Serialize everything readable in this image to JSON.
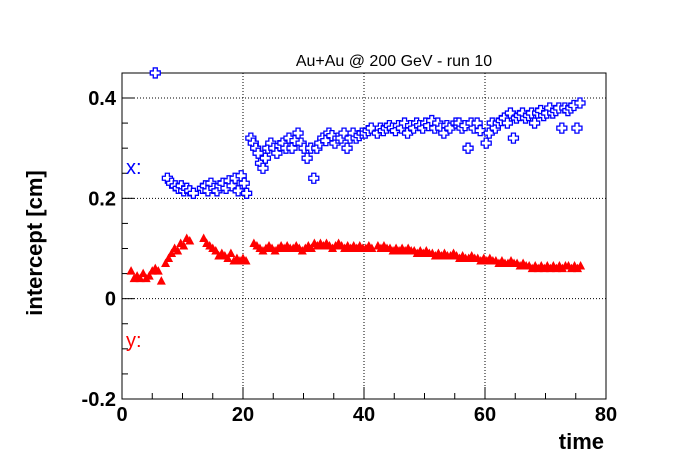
{
  "chart_data": {
    "type": "scatter",
    "title": "Au+Au @ 200 GeV - run 10",
    "xlabel": "time",
    "ylabel": "intercept [cm]",
    "xlim": [
      0,
      80
    ],
    "ylim": [
      -0.2,
      0.45
    ],
    "x_ticks": [
      "0",
      "20",
      "40",
      "60",
      "80"
    ],
    "y_ticks": [
      "-0.2",
      "0",
      "0.2",
      "0.4"
    ],
    "grid": true,
    "series": [
      {
        "name": "x:",
        "color": "#0000ff",
        "marker": "open-cross",
        "points": [
          [
            5.5,
            0.45
          ],
          [
            7.5,
            0.24
          ],
          [
            8.2,
            0.23
          ],
          [
            8.8,
            0.225
          ],
          [
            9.3,
            0.22
          ],
          [
            9.8,
            0.225
          ],
          [
            10.2,
            0.215
          ],
          [
            10.7,
            0.22
          ],
          [
            11.2,
            0.215
          ],
          [
            11.8,
            0.21
          ],
          [
            13.3,
            0.22
          ],
          [
            13.8,
            0.225
          ],
          [
            14.2,
            0.215
          ],
          [
            14.7,
            0.23
          ],
          [
            15.2,
            0.22
          ],
          [
            15.7,
            0.215
          ],
          [
            16.2,
            0.225
          ],
          [
            16.7,
            0.23
          ],
          [
            17.2,
            0.22
          ],
          [
            17.7,
            0.235
          ],
          [
            18.2,
            0.225
          ],
          [
            18.7,
            0.24
          ],
          [
            19.2,
            0.215
          ],
          [
            19.7,
            0.245
          ],
          [
            20.2,
            0.23
          ],
          [
            20.6,
            0.21
          ],
          [
            21.3,
            0.32
          ],
          [
            21.7,
            0.31
          ],
          [
            22.1,
            0.3
          ],
          [
            22.5,
            0.29
          ],
          [
            22.9,
            0.27
          ],
          [
            23.3,
            0.26
          ],
          [
            23.7,
            0.28
          ],
          [
            24.1,
            0.3
          ],
          [
            24.6,
            0.31
          ],
          [
            25.1,
            0.3
          ],
          [
            25.6,
            0.29
          ],
          [
            26.1,
            0.305
          ],
          [
            26.6,
            0.31
          ],
          [
            27.1,
            0.3
          ],
          [
            27.6,
            0.32
          ],
          [
            28.1,
            0.3
          ],
          [
            28.6,
            0.315
          ],
          [
            29.1,
            0.33
          ],
          [
            29.6,
            0.31
          ],
          [
            30.1,
            0.3
          ],
          [
            30.6,
            0.28
          ],
          [
            31.2,
            0.3
          ],
          [
            31.7,
            0.24
          ],
          [
            32.2,
            0.3
          ],
          [
            32.7,
            0.31
          ],
          [
            33.2,
            0.32
          ],
          [
            33.7,
            0.315
          ],
          [
            34.2,
            0.33
          ],
          [
            34.7,
            0.325
          ],
          [
            35.2,
            0.31
          ],
          [
            35.7,
            0.32
          ],
          [
            36.2,
            0.32
          ],
          [
            36.7,
            0.33
          ],
          [
            37.2,
            0.3
          ],
          [
            37.7,
            0.32
          ],
          [
            38.2,
            0.33
          ],
          [
            38.7,
            0.32
          ],
          [
            39.2,
            0.325
          ],
          [
            39.7,
            0.33
          ],
          [
            40.2,
            0.33
          ],
          [
            40.7,
            0.335
          ],
          [
            41.2,
            0.34
          ],
          [
            42.2,
            0.33
          ],
          [
            42.7,
            0.34
          ],
          [
            43.2,
            0.335
          ],
          [
            43.7,
            0.34
          ],
          [
            44.2,
            0.345
          ],
          [
            44.7,
            0.34
          ],
          [
            45.2,
            0.335
          ],
          [
            45.7,
            0.345
          ],
          [
            46.2,
            0.34
          ],
          [
            46.7,
            0.35
          ],
          [
            47.2,
            0.33
          ],
          [
            47.7,
            0.345
          ],
          [
            48.2,
            0.34
          ],
          [
            48.7,
            0.35
          ],
          [
            49.2,
            0.345
          ],
          [
            49.7,
            0.34
          ],
          [
            50.2,
            0.35
          ],
          [
            50.7,
            0.345
          ],
          [
            51.2,
            0.355
          ],
          [
            51.7,
            0.34
          ],
          [
            52.2,
            0.35
          ],
          [
            52.7,
            0.34
          ],
          [
            53.2,
            0.33
          ],
          [
            53.7,
            0.345
          ],
          [
            54.2,
            0.34
          ],
          [
            55.2,
            0.35
          ],
          [
            55.7,
            0.35
          ],
          [
            56.2,
            0.34
          ],
          [
            56.7,
            0.345
          ],
          [
            57.2,
            0.3
          ],
          [
            57.7,
            0.35
          ],
          [
            58.2,
            0.34
          ],
          [
            58.7,
            0.35
          ],
          [
            59.2,
            0.335
          ],
          [
            60.2,
            0.31
          ],
          [
            60.7,
            0.33
          ],
          [
            61.2,
            0.35
          ],
          [
            61.7,
            0.34
          ],
          [
            62.2,
            0.35
          ],
          [
            62.7,
            0.355
          ],
          [
            63.2,
            0.36
          ],
          [
            63.7,
            0.35
          ],
          [
            64.2,
            0.37
          ],
          [
            64.7,
            0.32
          ],
          [
            65.2,
            0.36
          ],
          [
            65.7,
            0.365
          ],
          [
            66.2,
            0.37
          ],
          [
            66.7,
            0.36
          ],
          [
            67.2,
            0.365
          ],
          [
            67.7,
            0.37
          ],
          [
            68.2,
            0.35
          ],
          [
            68.7,
            0.37
          ],
          [
            69.2,
            0.375
          ],
          [
            69.7,
            0.365
          ],
          [
            70.2,
            0.37
          ],
          [
            70.7,
            0.38
          ],
          [
            71.2,
            0.37
          ],
          [
            71.7,
            0.375
          ],
          [
            72.2,
            0.38
          ],
          [
            72.7,
            0.34
          ],
          [
            73.2,
            0.38
          ],
          [
            73.7,
            0.375
          ],
          [
            74.2,
            0.38
          ],
          [
            74.7,
            0.385
          ],
          [
            75.2,
            0.34
          ],
          [
            75.7,
            0.39
          ]
        ]
      },
      {
        "name": "y:",
        "color": "#ff0000",
        "marker": "filled-triangle",
        "points": [
          [
            1.5,
            0.055
          ],
          [
            2.0,
            0.04
          ],
          [
            2.5,
            0.045
          ],
          [
            3.0,
            0.04
          ],
          [
            3.5,
            0.05
          ],
          [
            4.0,
            0.04
          ],
          [
            4.5,
            0.045
          ],
          [
            5.0,
            0.055
          ],
          [
            5.5,
            0.06
          ],
          [
            6.0,
            0.055
          ],
          [
            6.5,
            0.035
          ],
          [
            7.2,
            0.07
          ],
          [
            7.7,
            0.08
          ],
          [
            8.2,
            0.09
          ],
          [
            8.7,
            0.1
          ],
          [
            9.2,
            0.095
          ],
          [
            9.7,
            0.11
          ],
          [
            10.2,
            0.105
          ],
          [
            10.7,
            0.12
          ],
          [
            11.2,
            0.115
          ],
          [
            13.5,
            0.12
          ],
          [
            14.0,
            0.11
          ],
          [
            14.5,
            0.105
          ],
          [
            15.0,
            0.1
          ],
          [
            15.5,
            0.095
          ],
          [
            16.0,
            0.085
          ],
          [
            16.5,
            0.09
          ],
          [
            17.0,
            0.085
          ],
          [
            17.5,
            0.08
          ],
          [
            18.0,
            0.09
          ],
          [
            18.5,
            0.075
          ],
          [
            19.0,
            0.08
          ],
          [
            19.5,
            0.075
          ],
          [
            20.0,
            0.08
          ],
          [
            20.5,
            0.075
          ],
          [
            21.8,
            0.11
          ],
          [
            22.3,
            0.105
          ],
          [
            22.8,
            0.1
          ],
          [
            23.3,
            0.095
          ],
          [
            23.8,
            0.1
          ],
          [
            24.3,
            0.105
          ],
          [
            24.8,
            0.1
          ],
          [
            25.3,
            0.095
          ],
          [
            25.8,
            0.1
          ],
          [
            26.3,
            0.105
          ],
          [
            26.8,
            0.1
          ],
          [
            27.3,
            0.105
          ],
          [
            27.8,
            0.1
          ],
          [
            28.3,
            0.1
          ],
          [
            28.8,
            0.105
          ],
          [
            29.3,
            0.1
          ],
          [
            29.8,
            0.095
          ],
          [
            30.3,
            0.1
          ],
          [
            30.8,
            0.105
          ],
          [
            31.3,
            0.1
          ],
          [
            31.8,
            0.11
          ],
          [
            32.3,
            0.105
          ],
          [
            32.8,
            0.11
          ],
          [
            33.3,
            0.105
          ],
          [
            33.8,
            0.11
          ],
          [
            34.3,
            0.105
          ],
          [
            34.8,
            0.1
          ],
          [
            35.3,
            0.105
          ],
          [
            35.8,
            0.11
          ],
          [
            36.3,
            0.105
          ],
          [
            36.8,
            0.1
          ],
          [
            37.3,
            0.105
          ],
          [
            37.8,
            0.1
          ],
          [
            38.3,
            0.105
          ],
          [
            38.8,
            0.1
          ],
          [
            39.3,
            0.105
          ],
          [
            39.8,
            0.1
          ],
          [
            40.3,
            0.1
          ],
          [
            40.8,
            0.105
          ],
          [
            41.3,
            0.1
          ],
          [
            42.3,
            0.105
          ],
          [
            42.8,
            0.1
          ],
          [
            43.3,
            0.105
          ],
          [
            43.8,
            0.1
          ],
          [
            44.3,
            0.1
          ],
          [
            44.8,
            0.095
          ],
          [
            45.3,
            0.1
          ],
          [
            45.8,
            0.095
          ],
          [
            46.3,
            0.1
          ],
          [
            46.8,
            0.095
          ],
          [
            47.3,
            0.1
          ],
          [
            47.8,
            0.095
          ],
          [
            48.3,
            0.095
          ],
          [
            48.8,
            0.09
          ],
          [
            49.3,
            0.095
          ],
          [
            49.8,
            0.09
          ],
          [
            50.3,
            0.095
          ],
          [
            50.8,
            0.09
          ],
          [
            51.3,
            0.09
          ],
          [
            51.8,
            0.085
          ],
          [
            52.3,
            0.09
          ],
          [
            52.8,
            0.085
          ],
          [
            53.3,
            0.09
          ],
          [
            53.8,
            0.085
          ],
          [
            54.3,
            0.085
          ],
          [
            54.8,
            0.09
          ],
          [
            55.3,
            0.085
          ],
          [
            55.8,
            0.08
          ],
          [
            56.3,
            0.085
          ],
          [
            56.8,
            0.08
          ],
          [
            57.3,
            0.08
          ],
          [
            57.8,
            0.085
          ],
          [
            58.3,
            0.08
          ],
          [
            58.8,
            0.08
          ],
          [
            59.3,
            0.075
          ],
          [
            59.8,
            0.08
          ],
          [
            60.3,
            0.075
          ],
          [
            60.8,
            0.08
          ],
          [
            61.3,
            0.075
          ],
          [
            61.8,
            0.075
          ],
          [
            62.3,
            0.07
          ],
          [
            62.8,
            0.075
          ],
          [
            63.3,
            0.07
          ],
          [
            63.8,
            0.07
          ],
          [
            64.3,
            0.075
          ],
          [
            64.8,
            0.07
          ],
          [
            65.3,
            0.07
          ],
          [
            65.8,
            0.065
          ],
          [
            66.3,
            0.07
          ],
          [
            66.8,
            0.065
          ],
          [
            67.3,
            0.065
          ],
          [
            67.8,
            0.06
          ],
          [
            68.3,
            0.065
          ],
          [
            68.8,
            0.06
          ],
          [
            69.3,
            0.065
          ],
          [
            69.8,
            0.06
          ],
          [
            70.3,
            0.065
          ],
          [
            70.8,
            0.06
          ],
          [
            71.3,
            0.065
          ],
          [
            71.8,
            0.06
          ],
          [
            72.3,
            0.065
          ],
          [
            72.8,
            0.06
          ],
          [
            73.3,
            0.065
          ],
          [
            73.8,
            0.065
          ],
          [
            74.3,
            0.06
          ],
          [
            74.8,
            0.065
          ],
          [
            75.3,
            0.06
          ],
          [
            75.8,
            0.065
          ]
        ]
      }
    ]
  }
}
